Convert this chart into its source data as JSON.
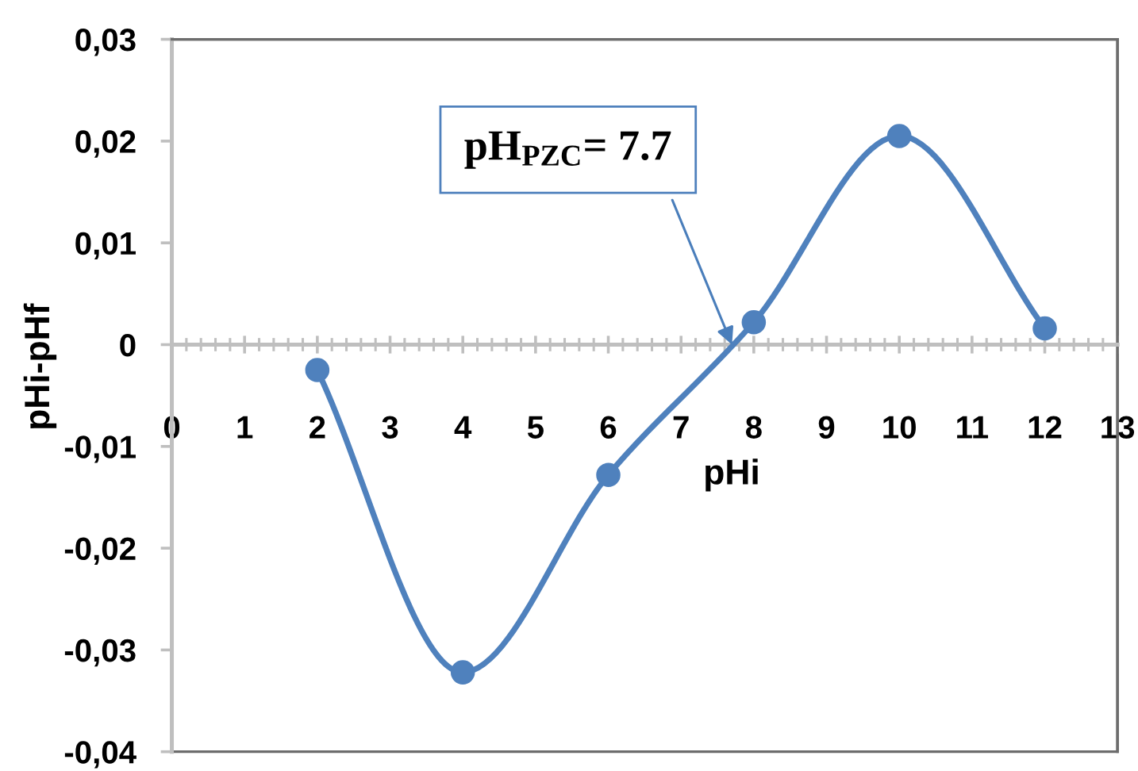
{
  "chart_data": {
    "type": "line",
    "xlabel": "pHi",
    "ylabel": "pHi-pHf",
    "x": [
      2,
      4,
      6,
      8,
      10,
      12
    ],
    "series": [
      {
        "color": "#4f81bd",
        "values": [
          -0.0025,
          -0.0322,
          -0.0128,
          0.0022,
          0.0205,
          0.0016
        ]
      }
    ],
    "marker": "circle",
    "line_style": "solid",
    "xlim": [
      0,
      13
    ],
    "xticks": [
      0,
      1,
      2,
      3,
      4,
      5,
      6,
      7,
      8,
      9,
      10,
      11,
      12,
      13
    ],
    "ylim": [
      -0.04,
      0.03
    ],
    "yticks": [
      {
        "value": -0.04,
        "label": "-0,04"
      },
      {
        "value": -0.03,
        "label": "-0,03"
      },
      {
        "value": -0.02,
        "label": "-0,02"
      },
      {
        "value": -0.01,
        "label": "-0,01"
      },
      {
        "value": 0,
        "label": "0"
      },
      {
        "value": 0.01,
        "label": "0,01"
      },
      {
        "value": 0.02,
        "label": "0,02"
      },
      {
        "value": 0.03,
        "label": "0,03"
      }
    ],
    "annotations": [
      {
        "text": "pH$_{PZC}$= 7.7",
        "x": 7.7,
        "y": 0
      }
    ]
  }
}
